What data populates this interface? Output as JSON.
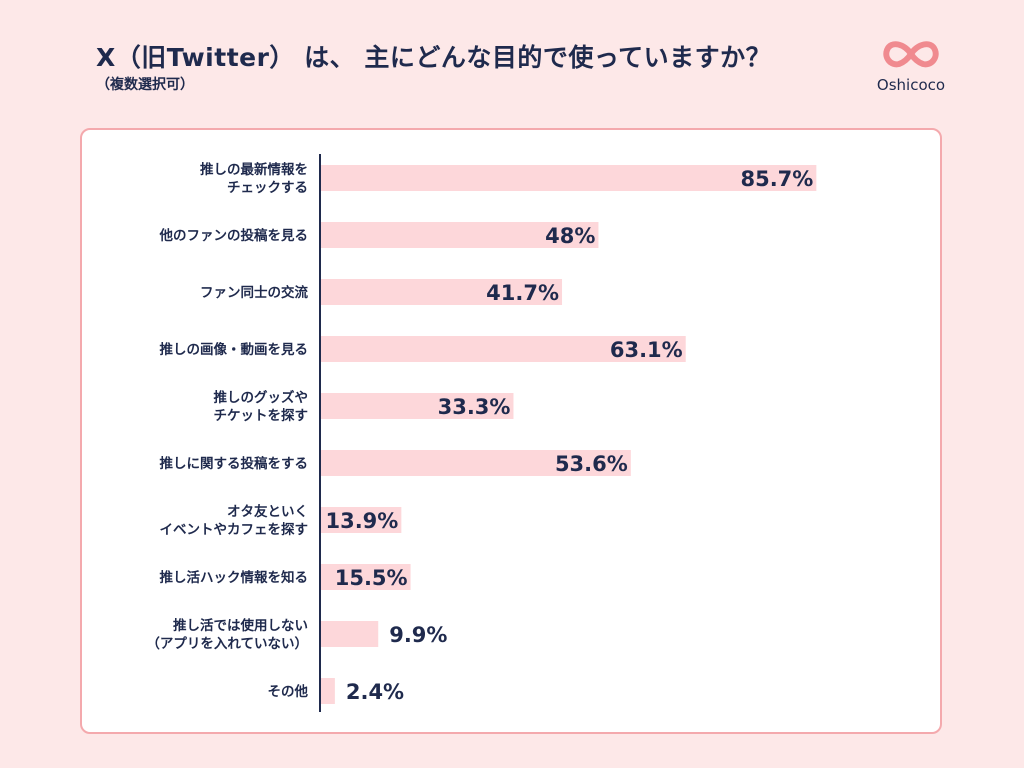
{
  "header": {
    "title": "X（旧Twitter） は、 主にどんな目的で使っていますか？",
    "subtitle": "（複数選択可）"
  },
  "brand": {
    "name": "Oshicoco",
    "logo_icon": "infinity-heart-icon",
    "logo_color": "#f08a8f"
  },
  "colors": {
    "bar": "#fdd7da",
    "axis": "#1f2a4d",
    "text": "#1f2a4d"
  },
  "chart_data": {
    "type": "bar",
    "orientation": "horizontal",
    "categories": [
      [
        "推しの最新情報を",
        "チェックする"
      ],
      [
        "他のファンの投稿を見る"
      ],
      [
        "ファン同士の交流"
      ],
      [
        "推しの画像・動画を見る"
      ],
      [
        "推しのグッズや",
        "チケットを探す"
      ],
      [
        "推しに関する投稿をする"
      ],
      [
        "オタ友といく",
        "イベントやカフェを探す"
      ],
      [
        "推し活ハック情報を知る"
      ],
      [
        "推し活では使用しない",
        "（アプリを入れていない）"
      ],
      [
        "その他"
      ]
    ],
    "values": [
      85.7,
      48,
      41.7,
      63.1,
      33.3,
      53.6,
      13.9,
      15.5,
      9.9,
      2.4
    ],
    "value_labels": [
      "85.7%",
      "48%",
      "41.7%",
      "63.1%",
      "33.3%",
      "53.6%",
      "13.9%",
      "15.5%",
      "9.9%",
      "2.4%"
    ],
    "unit": "%",
    "xlim": [
      0,
      100
    ],
    "grid": false,
    "legend": "none"
  }
}
